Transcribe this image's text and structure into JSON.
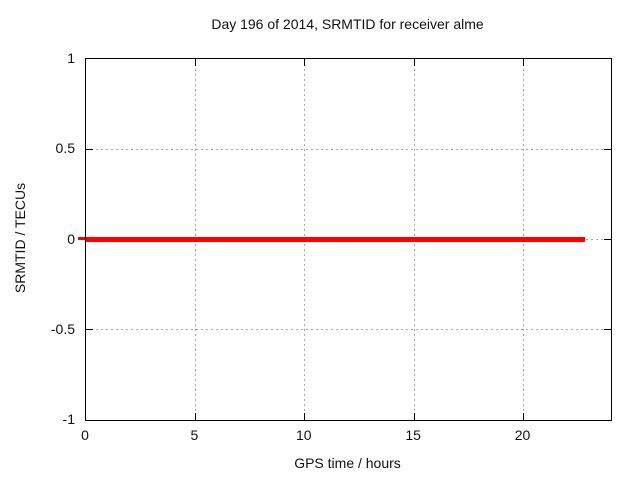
{
  "chart_data": {
    "type": "line",
    "title": "Day 196 of 2014, SRMTID for receiver alme",
    "xlabel": "GPS time / hours",
    "ylabel": "SRMTID / TECUs",
    "xlim": [
      0,
      24
    ],
    "ylim": [
      -1,
      1
    ],
    "x_ticks": [
      0,
      5,
      10,
      15,
      20
    ],
    "y_ticks": [
      -1,
      -0.5,
      0,
      0.5,
      1
    ],
    "grid": true,
    "legend": "none",
    "series": [
      {
        "name": "SRMTID",
        "color": "#ff0000",
        "constant_value": 0,
        "x_start": 0,
        "x_end": 22.8,
        "points": [
          [
            0,
            0
          ],
          [
            22.8,
            0
          ]
        ]
      }
    ]
  },
  "colors": {
    "background": "#ffffff",
    "axis": "#000000",
    "grid": "#a8a8a8",
    "series": "#ff0000",
    "text": "#111111"
  }
}
